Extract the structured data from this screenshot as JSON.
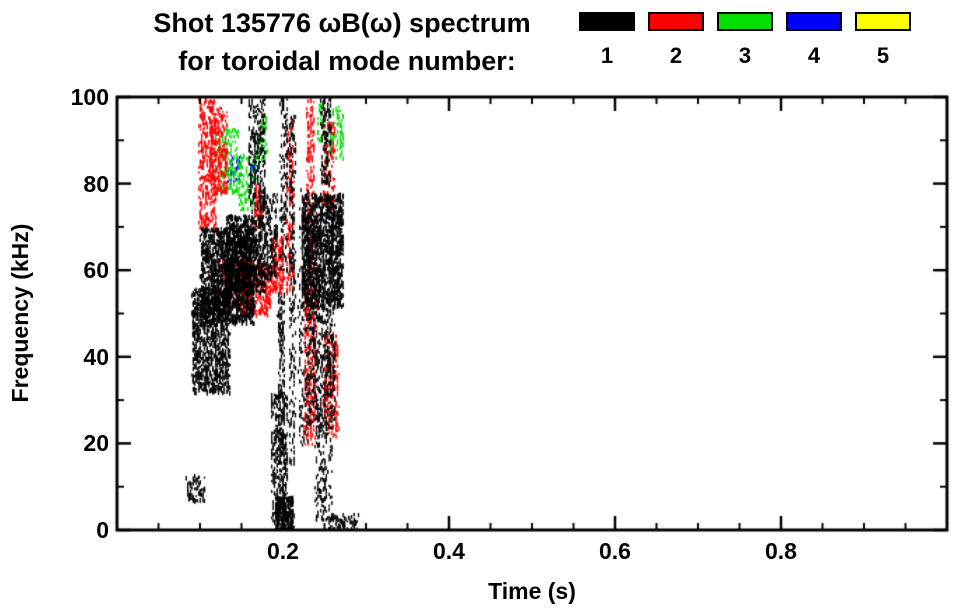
{
  "header": {
    "title": "Shot 135776 ωB(ω) spectrum",
    "subtitle": "for toroidal mode number:"
  },
  "chart_data": {
    "type": "scatter",
    "title": "Shot 135776 ωB(ω) spectrum",
    "subtitle": "for toroidal mode number:",
    "xlabel": "Time (s)",
    "ylabel": "Frequency (kHz)",
    "xlim": [
      0.0,
      1.0
    ],
    "ylim": [
      0,
      100
    ],
    "grid": false,
    "xticks": {
      "major": [
        0.2,
        0.4,
        0.6,
        0.8
      ],
      "labels": [
        "0.2",
        "0.4",
        "0.6",
        "0.8"
      ],
      "minor_step": 0.05
    },
    "yticks": {
      "major": [
        0,
        20,
        40,
        60,
        80,
        100
      ],
      "labels": [
        "0",
        "20",
        "40",
        "60",
        "80",
        "100"
      ],
      "minor_step": 10
    },
    "legend": {
      "position": "top-right",
      "entries": [
        {
          "label": "1",
          "color": "#000000"
        },
        {
          "label": "2",
          "color": "#ff0000"
        },
        {
          "label": "3",
          "color": "#00dd00"
        },
        {
          "label": "4",
          "color": "#0000ff"
        },
        {
          "label": "5",
          "color": "#ffff00"
        }
      ]
    },
    "cluster_format": "[t_min_s, t_max_s, f_min_kHz, f_max_kHz, n_points] — dense mode-activity regions read from the spectrogram; activity only between t≈0.08 and t≈0.29 s",
    "series": [
      {
        "name": "n=1",
        "color": "#000000",
        "clusters": [
          [
            0.083,
            0.105,
            7,
            13,
            70
          ],
          [
            0.09,
            0.135,
            32,
            56,
            1000
          ],
          [
            0.1,
            0.165,
            48,
            70,
            1600
          ],
          [
            0.13,
            0.178,
            55,
            73,
            800
          ],
          [
            0.158,
            0.178,
            74,
            100,
            260
          ],
          [
            0.178,
            0.192,
            58,
            78,
            160
          ],
          [
            0.185,
            0.205,
            0,
            32,
            320
          ],
          [
            0.19,
            0.212,
            0,
            8,
            260
          ],
          [
            0.193,
            0.201,
            5,
            55,
            200
          ],
          [
            0.196,
            0.205,
            60,
            100,
            120
          ],
          [
            0.207,
            0.214,
            15,
            96,
            230
          ],
          [
            0.222,
            0.272,
            52,
            78,
            1500
          ],
          [
            0.23,
            0.262,
            25,
            52,
            420
          ],
          [
            0.238,
            0.258,
            2,
            25,
            160
          ],
          [
            0.218,
            0.23,
            20,
            80,
            160
          ],
          [
            0.245,
            0.257,
            80,
            100,
            120
          ],
          [
            0.255,
            0.29,
            0,
            4,
            90
          ]
        ]
      },
      {
        "name": "n=2",
        "color": "#ff0000",
        "clusters": [
          [
            0.098,
            0.118,
            70,
            100,
            350
          ],
          [
            0.112,
            0.132,
            78,
            98,
            220
          ],
          [
            0.125,
            0.16,
            52,
            63,
            300
          ],
          [
            0.15,
            0.185,
            50,
            62,
            280
          ],
          [
            0.165,
            0.175,
            70,
            80,
            80
          ],
          [
            0.185,
            0.2,
            55,
            68,
            150
          ],
          [
            0.203,
            0.212,
            55,
            95,
            140
          ],
          [
            0.225,
            0.24,
            20,
            62,
            260
          ],
          [
            0.228,
            0.237,
            62,
            100,
            160
          ],
          [
            0.248,
            0.266,
            22,
            46,
            200
          ],
          [
            0.247,
            0.262,
            74,
            95,
            90
          ]
        ]
      },
      {
        "name": "n=3",
        "color": "#00dd00",
        "clusters": [
          [
            0.118,
            0.145,
            78,
            93,
            140
          ],
          [
            0.145,
            0.168,
            74,
            87,
            100
          ],
          [
            0.168,
            0.18,
            86,
            96,
            50
          ],
          [
            0.24,
            0.25,
            90,
            99,
            30
          ],
          [
            0.255,
            0.272,
            86,
            98,
            70
          ]
        ]
      },
      {
        "name": "n=4",
        "color": "#0000ff",
        "clusters": [
          [
            0.134,
            0.15,
            80,
            87,
            30
          ],
          [
            0.158,
            0.168,
            80,
            85,
            18
          ]
        ]
      },
      {
        "name": "n=5",
        "color": "#ffff00",
        "clusters": []
      }
    ]
  }
}
